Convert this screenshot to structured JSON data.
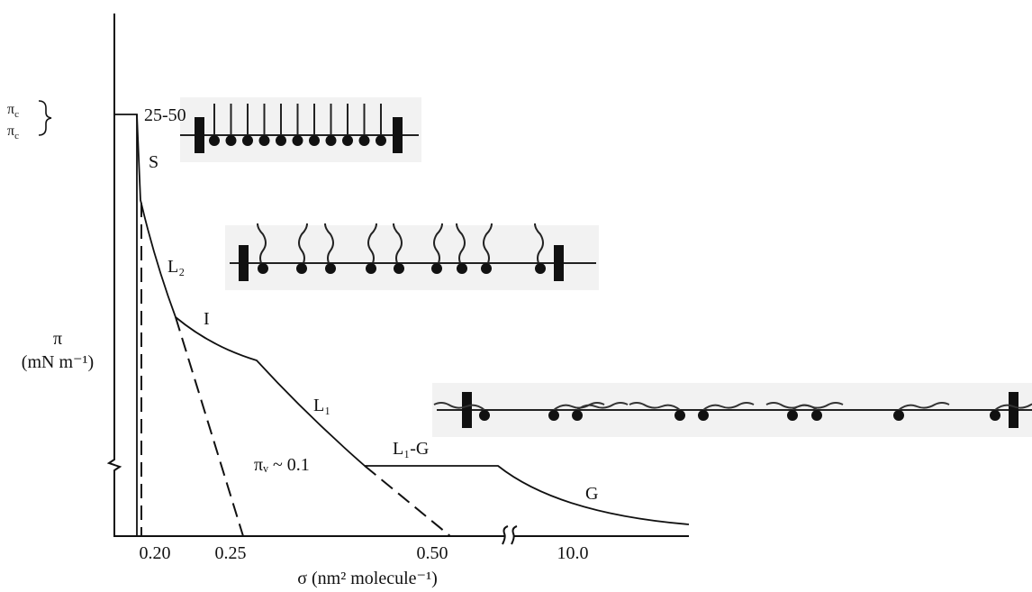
{
  "y_axis": {
    "symbol": "π",
    "unit": "(mN m⁻¹)",
    "critical": [
      {
        "symbol": "π",
        "sub": "c"
      },
      {
        "symbol": "π",
        "sub": "c"
      }
    ],
    "critical_value": "25-50"
  },
  "x_axis": {
    "label": "σ (nm² molecule⁻¹)",
    "ticks": [
      "0.20",
      "0.25",
      "0.50",
      "10.0"
    ]
  },
  "regions": {
    "s": "S",
    "l2": "L₂",
    "i": "I",
    "l1": "L₁",
    "l1g": "L₁-G",
    "g": "G"
  },
  "annotation": "πᵥ ~ 0.1"
}
